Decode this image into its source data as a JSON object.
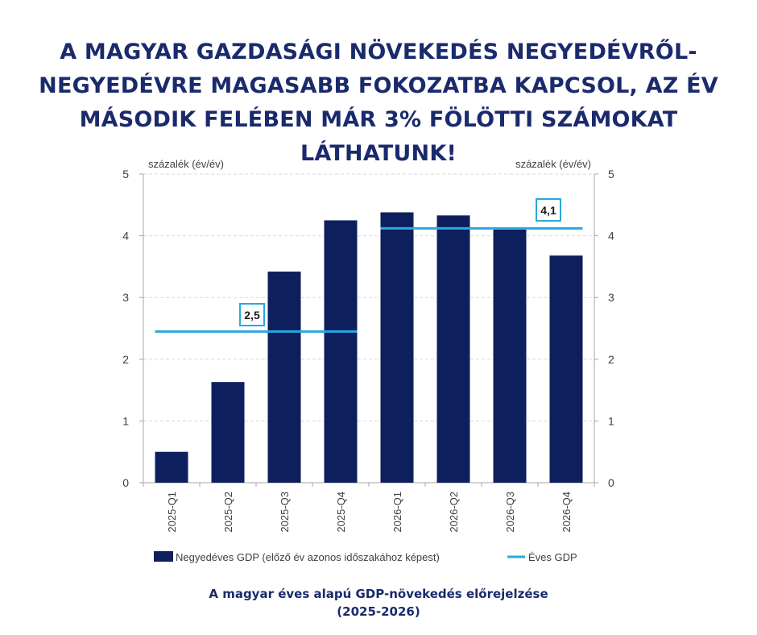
{
  "headline": {
    "line1": "A MAGYAR GAZDASÁGI NÖVEKEDÉS NEGYEDÉVRŐL-",
    "line2": "NEGYEDÉVRE MAGASABB FOKOZATBA KAPCSOL, AZ ÉV",
    "line3": "MÁSODIK FELÉBEN MÁR 3% FÖLÖTTI SZÁMOKAT LÁTHATUNK!"
  },
  "caption": {
    "line1": "A magyar éves alapú GDP-növekedés előrejelzése",
    "line2": "(2025-2026)"
  },
  "colors": {
    "headline": "#1a2a6c",
    "bar": "#0d1f5c",
    "line": "#29a9e0"
  },
  "chart_data": {
    "type": "bar",
    "ylabel_left": "százalék (év/év)",
    "ylabel_right": "százalék (év/év)",
    "ylim": [
      0,
      5
    ],
    "yticks": [
      0,
      1,
      2,
      3,
      4,
      5
    ],
    "grid": true,
    "categories": [
      "2025-Q1",
      "2025-Q2",
      "2025-Q3",
      "2025-Q4",
      "2026-Q1",
      "2026-Q2",
      "2026-Q3",
      "2026-Q4"
    ],
    "series": [
      {
        "name": "Negyedéves GDP (előző év azonos időszakához képest)",
        "type": "bar",
        "values": [
          0.5,
          1.63,
          3.42,
          4.25,
          4.38,
          4.33,
          4.1,
          3.68
        ]
      },
      {
        "name": "Éves GDP",
        "type": "line",
        "segments": [
          {
            "from": "2025-Q1",
            "to": "2025-Q4",
            "value": 2.45,
            "label": "2,5"
          },
          {
            "from": "2026-Q1",
            "to": "2026-Q4",
            "value": 4.12,
            "label": "4,1"
          }
        ]
      }
    ],
    "legend_position": "bottom"
  }
}
